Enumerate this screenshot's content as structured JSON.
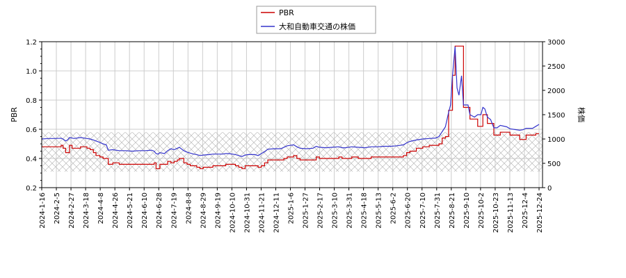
{
  "chart_data": {
    "type": "line",
    "title": "",
    "ylabel_left": "PBR",
    "ylabel_right": "株価",
    "left_ylim": [
      0.2,
      1.2
    ],
    "left_yticks": [
      "0.2",
      "0.4",
      "0.6",
      "0.8",
      "1.0",
      "1.2"
    ],
    "right_ylim": [
      0,
      3000
    ],
    "right_yticks": [
      "0",
      "500",
      "1000",
      "1500",
      "2000",
      "2500",
      "3000"
    ],
    "x_tick_labels": [
      "2024-1-16",
      "2024-2-5",
      "2024-2-27",
      "2024-3-18",
      "2024-4-8",
      "2024-4-26",
      "2024-5-21",
      "2024-6-10",
      "2024-6-28",
      "2024-7-19",
      "2024-8-8",
      "2024-8-29",
      "2024-9-19",
      "2024-10-10",
      "2024-10-31",
      "2024-11-21",
      "2024-12-11",
      "2025-1-6",
      "2025-1-27",
      "2025-2-17",
      "2025-3-10",
      "2025-3-31",
      "2025-4-18",
      "2025-5-13",
      "2025-6-2",
      "2025-6-20",
      "2025-7-10",
      "2025-7-31",
      "2025-8-21",
      "2025-9-10",
      "2025-10-2",
      "2025-10-23",
      "2025-11-13",
      "2025-12-4",
      "2025-12-24"
    ],
    "grid": true,
    "legend_position": "top-center",
    "hatched_band": {
      "axis": "left",
      "from": 0.31,
      "to": 0.58
    },
    "series": [
      {
        "name": "PBR",
        "axis": "left",
        "color": "#cc0000",
        "points": [
          [
            0,
            0.48
          ],
          [
            1,
            0.48
          ],
          [
            2,
            0.48
          ],
          [
            3,
            0.49
          ],
          [
            3.3,
            0.47
          ],
          [
            3.7,
            0.44
          ],
          [
            4,
            0.44
          ],
          [
            4.3,
            0.49
          ],
          [
            4.7,
            0.47
          ],
          [
            5,
            0.47
          ],
          [
            6,
            0.48
          ],
          [
            7,
            0.47
          ],
          [
            7.5,
            0.46
          ],
          [
            8,
            0.44
          ],
          [
            8.4,
            0.42
          ],
          [
            9,
            0.41
          ],
          [
            9.5,
            0.4
          ],
          [
            10,
            0.4
          ],
          [
            10.3,
            0.36
          ],
          [
            11,
            0.37
          ],
          [
            12,
            0.36
          ],
          [
            13,
            0.36
          ],
          [
            14,
            0.36
          ],
          [
            15,
            0.36
          ],
          [
            16,
            0.36
          ],
          [
            17,
            0.36
          ],
          [
            17.4,
            0.37
          ],
          [
            17.7,
            0.33
          ],
          [
            18,
            0.33
          ],
          [
            18.3,
            0.36
          ],
          [
            19,
            0.36
          ],
          [
            19.5,
            0.38
          ],
          [
            20,
            0.37
          ],
          [
            20.5,
            0.38
          ],
          [
            21,
            0.39
          ],
          [
            21.3,
            0.4
          ],
          [
            22,
            0.37
          ],
          [
            22.5,
            0.36
          ],
          [
            23,
            0.35
          ],
          [
            23.5,
            0.35
          ],
          [
            24,
            0.34
          ],
          [
            24.5,
            0.33
          ],
          [
            25,
            0.34
          ],
          [
            26,
            0.34
          ],
          [
            26.5,
            0.35
          ],
          [
            27,
            0.35
          ],
          [
            28,
            0.35
          ],
          [
            28.5,
            0.36
          ],
          [
            29,
            0.36
          ],
          [
            30,
            0.35
          ],
          [
            30.5,
            0.34
          ],
          [
            31,
            0.33
          ],
          [
            31.5,
            0.35
          ],
          [
            32,
            0.35
          ],
          [
            33,
            0.35
          ],
          [
            33.5,
            0.34
          ],
          [
            34,
            0.35
          ],
          [
            34.5,
            0.37
          ],
          [
            35,
            0.39
          ],
          [
            36,
            0.39
          ],
          [
            37,
            0.39
          ],
          [
            37.5,
            0.4
          ],
          [
            38,
            0.41
          ],
          [
            39,
            0.42
          ],
          [
            39.5,
            0.4
          ],
          [
            40,
            0.39
          ],
          [
            41,
            0.39
          ],
          [
            42,
            0.39
          ],
          [
            42.5,
            0.41
          ],
          [
            43,
            0.4
          ],
          [
            44,
            0.4
          ],
          [
            45,
            0.4
          ],
          [
            46,
            0.41
          ],
          [
            46.5,
            0.4
          ],
          [
            47,
            0.4
          ],
          [
            48,
            0.41
          ],
          [
            49,
            0.4
          ],
          [
            50,
            0.4
          ],
          [
            51,
            0.41
          ],
          [
            52,
            0.41
          ],
          [
            53,
            0.41
          ],
          [
            54,
            0.41
          ],
          [
            55,
            0.41
          ],
          [
            56,
            0.42
          ],
          [
            56.5,
            0.44
          ],
          [
            57,
            0.45
          ],
          [
            58,
            0.47
          ],
          [
            59,
            0.48
          ],
          [
            60,
            0.49
          ],
          [
            61,
            0.49
          ],
          [
            61.5,
            0.5
          ],
          [
            62,
            0.54
          ],
          [
            62.5,
            0.55
          ],
          [
            63,
            0.73
          ],
          [
            63.3,
            0.73
          ],
          [
            63.6,
            0.97
          ],
          [
            64,
            1.17
          ],
          [
            64.5,
            1.17
          ],
          [
            65,
            1.17
          ],
          [
            65.3,
            0.75
          ],
          [
            66,
            0.75
          ],
          [
            66.3,
            0.67
          ],
          [
            67,
            0.67
          ],
          [
            67.5,
            0.62
          ],
          [
            68,
            0.62
          ],
          [
            68.3,
            0.7
          ],
          [
            68.6,
            0.7
          ],
          [
            69,
            0.64
          ],
          [
            69.5,
            0.64
          ],
          [
            70,
            0.56
          ],
          [
            70.5,
            0.56
          ],
          [
            71,
            0.58
          ],
          [
            72,
            0.58
          ],
          [
            72.5,
            0.56
          ],
          [
            73,
            0.56
          ],
          [
            74,
            0.53
          ],
          [
            74.5,
            0.53
          ],
          [
            75,
            0.56
          ],
          [
            76,
            0.56
          ],
          [
            76.5,
            0.57
          ],
          [
            77,
            0.57
          ]
        ]
      },
      {
        "name": "大和自動車交通の株価",
        "axis": "right",
        "color": "#3333cc",
        "points": [
          [
            0,
            1000
          ],
          [
            1,
            1010
          ],
          [
            2,
            1010
          ],
          [
            3,
            1015
          ],
          [
            3.3,
            1000
          ],
          [
            3.7,
            960
          ],
          [
            4,
            980
          ],
          [
            4.3,
            1030
          ],
          [
            4.7,
            1020
          ],
          [
            5,
            1010
          ],
          [
            6,
            1030
          ],
          [
            7,
            1010
          ],
          [
            7.5,
            1000
          ],
          [
            8,
            980
          ],
          [
            8.4,
            960
          ],
          [
            9,
            930
          ],
          [
            9.5,
            900
          ],
          [
            10,
            880
          ],
          [
            10.3,
            770
          ],
          [
            11,
            780
          ],
          [
            12,
            760
          ],
          [
            13,
            760
          ],
          [
            14,
            750
          ],
          [
            15,
            760
          ],
          [
            16,
            760
          ],
          [
            17,
            770
          ],
          [
            17.4,
            750
          ],
          [
            17.7,
            700
          ],
          [
            18,
            690
          ],
          [
            18.3,
            720
          ],
          [
            19,
            700
          ],
          [
            19.5,
            760
          ],
          [
            20,
            800
          ],
          [
            20.5,
            780
          ],
          [
            21,
            810
          ],
          [
            21.3,
            830
          ],
          [
            22,
            760
          ],
          [
            22.5,
            730
          ],
          [
            23,
            710
          ],
          [
            23.5,
            690
          ],
          [
            24,
            680
          ],
          [
            24.5,
            660
          ],
          [
            25,
            670
          ],
          [
            26,
            680
          ],
          [
            26.5,
            690
          ],
          [
            27,
            690
          ],
          [
            28,
            690
          ],
          [
            28.5,
            700
          ],
          [
            29,
            700
          ],
          [
            30,
            680
          ],
          [
            30.5,
            660
          ],
          [
            31,
            640
          ],
          [
            31.5,
            670
          ],
          [
            32,
            680
          ],
          [
            33,
            680
          ],
          [
            33.5,
            660
          ],
          [
            34,
            700
          ],
          [
            34.5,
            740
          ],
          [
            35,
            790
          ],
          [
            36,
            800
          ],
          [
            37,
            800
          ],
          [
            37.5,
            830
          ],
          [
            38,
            860
          ],
          [
            39,
            880
          ],
          [
            39.5,
            840
          ],
          [
            40,
            810
          ],
          [
            41,
            800
          ],
          [
            42,
            810
          ],
          [
            42.5,
            850
          ],
          [
            43,
            830
          ],
          [
            44,
            820
          ],
          [
            45,
            830
          ],
          [
            46,
            840
          ],
          [
            46.5,
            820
          ],
          [
            47,
            820
          ],
          [
            48,
            840
          ],
          [
            49,
            830
          ],
          [
            50,
            820
          ],
          [
            51,
            840
          ],
          [
            52,
            840
          ],
          [
            53,
            850
          ],
          [
            54,
            850
          ],
          [
            55,
            860
          ],
          [
            56,
            880
          ],
          [
            56.5,
            920
          ],
          [
            57,
            950
          ],
          [
            58,
            980
          ],
          [
            59,
            1000
          ],
          [
            60,
            1010
          ],
          [
            61,
            1020
          ],
          [
            61.5,
            1050
          ],
          [
            62,
            1150
          ],
          [
            62.5,
            1250
          ],
          [
            63,
            1550
          ],
          [
            63.3,
            1700
          ],
          [
            63.6,
            2300
          ],
          [
            64,
            2900
          ],
          [
            64.3,
            2050
          ],
          [
            64.6,
            1900
          ],
          [
            65,
            2300
          ],
          [
            65.3,
            1700
          ],
          [
            66,
            1700
          ],
          [
            66.3,
            1500
          ],
          [
            67,
            1450
          ],
          [
            67.5,
            1500
          ],
          [
            68,
            1500
          ],
          [
            68.3,
            1650
          ],
          [
            68.6,
            1620
          ],
          [
            69,
            1450
          ],
          [
            69.5,
            1400
          ],
          [
            70,
            1230
          ],
          [
            70.5,
            1230
          ],
          [
            71,
            1280
          ],
          [
            72,
            1250
          ],
          [
            72.5,
            1210
          ],
          [
            73,
            1200
          ],
          [
            74,
            1180
          ],
          [
            74.5,
            1190
          ],
          [
            75,
            1220
          ],
          [
            76,
            1220
          ],
          [
            76.5,
            1260
          ],
          [
            77,
            1300
          ]
        ]
      }
    ]
  }
}
